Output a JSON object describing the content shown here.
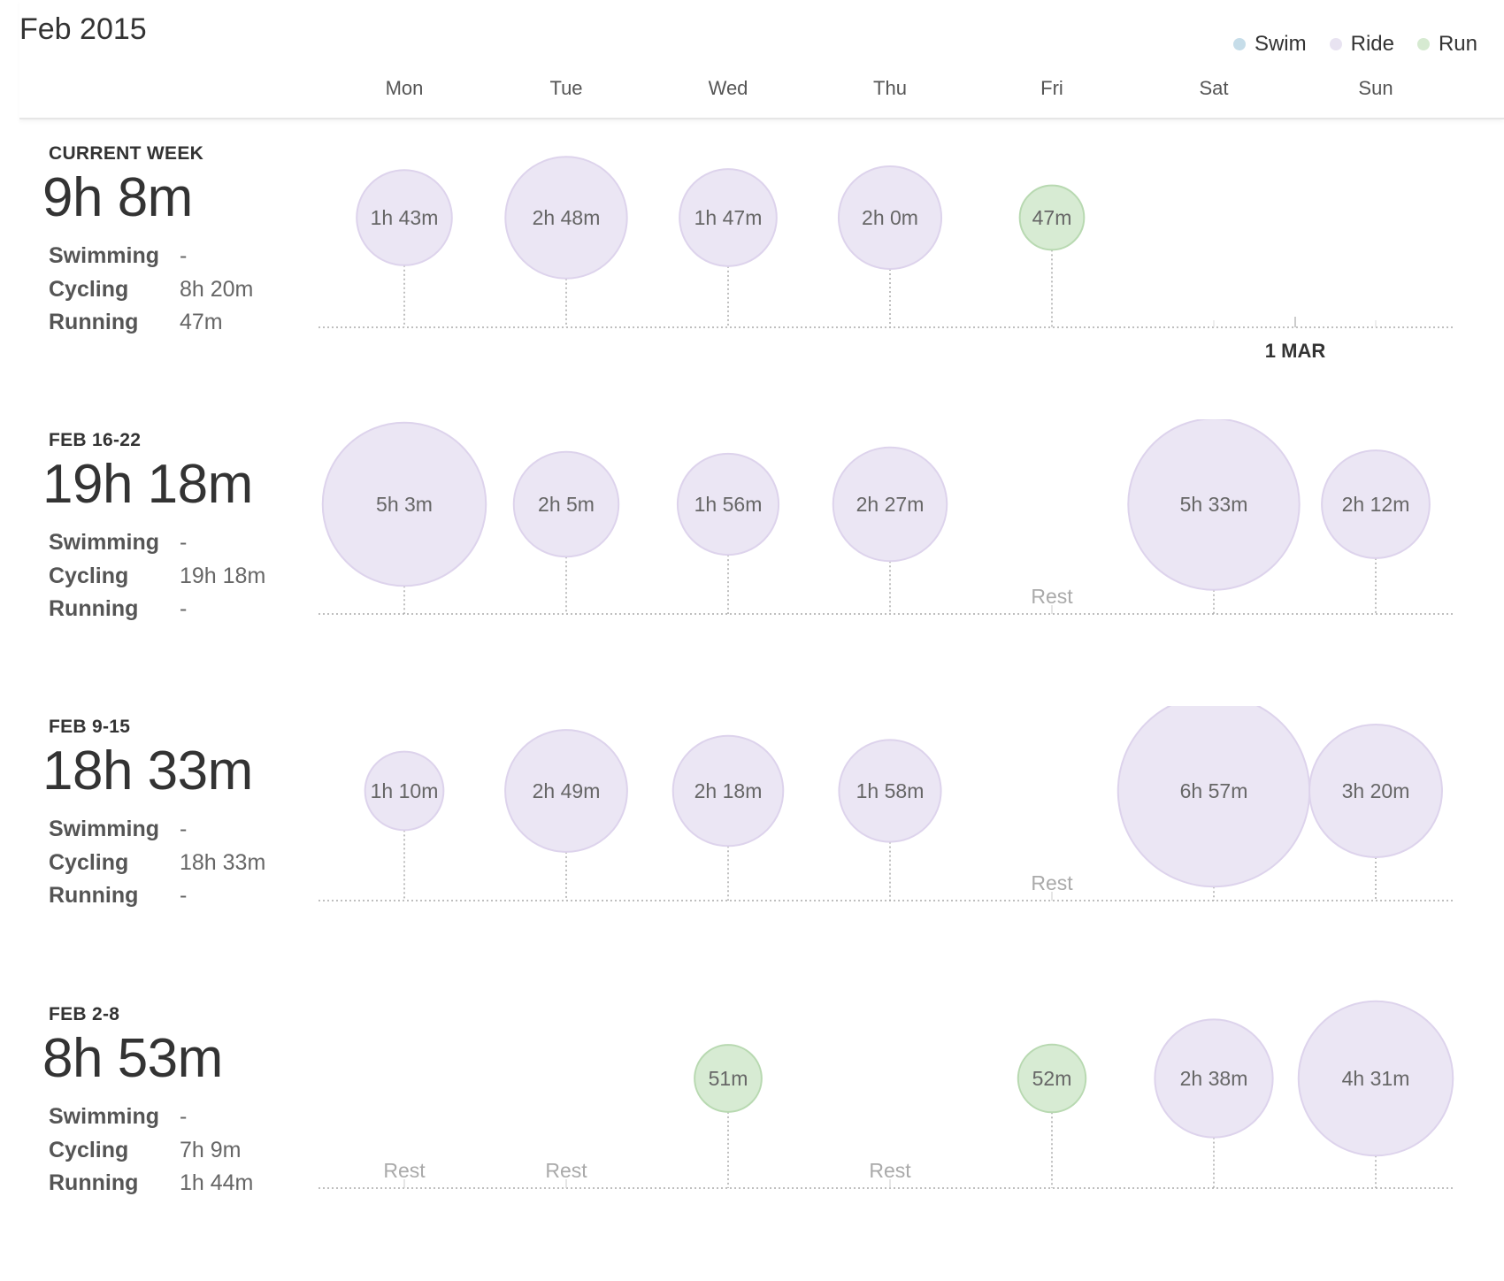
{
  "header": {
    "title": "Feb 2015",
    "legend": [
      {
        "label": "Swim",
        "color": "#c6dde9"
      },
      {
        "label": "Ride",
        "color": "#e8e3f1"
      },
      {
        "label": "Run",
        "color": "#d6ead1"
      }
    ],
    "days": [
      "Mon",
      "Tue",
      "Wed",
      "Thu",
      "Fri",
      "Sat",
      "Sun"
    ]
  },
  "colors": {
    "ride_fill": "#ebe6f4",
    "ride_stroke": "#ddd3ec",
    "run_fill": "#d7ebd3",
    "run_stroke": "#b8d9b1",
    "axis": "#aaaaaa"
  },
  "weeks": [
    {
      "label": "CURRENT WEEK",
      "total": "9h 8m",
      "stats": [
        {
          "name": "Swimming",
          "value": "-"
        },
        {
          "name": "Cycling",
          "value": "8h 20m"
        },
        {
          "name": "Running",
          "value": "47m"
        }
      ],
      "days": [
        {
          "type": "ride",
          "label": "1h 43m",
          "minutes": 103
        },
        {
          "type": "ride",
          "label": "2h 48m",
          "minutes": 168
        },
        {
          "type": "ride",
          "label": "1h 47m",
          "minutes": 107
        },
        {
          "type": "ride",
          "label": "2h 0m",
          "minutes": 120
        },
        {
          "type": "run",
          "label": "47m",
          "minutes": 47
        },
        {
          "type": "none"
        },
        {
          "type": "none"
        }
      ],
      "marker": "1 MAR"
    },
    {
      "label": "FEB 16-22",
      "total": "19h 18m",
      "stats": [
        {
          "name": "Swimming",
          "value": "-"
        },
        {
          "name": "Cycling",
          "value": "19h 18m"
        },
        {
          "name": "Running",
          "value": "-"
        }
      ],
      "days": [
        {
          "type": "ride",
          "label": "5h 3m",
          "minutes": 303
        },
        {
          "type": "ride",
          "label": "2h 5m",
          "minutes": 125
        },
        {
          "type": "ride",
          "label": "1h 56m",
          "minutes": 116
        },
        {
          "type": "ride",
          "label": "2h 27m",
          "minutes": 147
        },
        {
          "type": "rest",
          "label": "Rest"
        },
        {
          "type": "ride",
          "label": "5h 33m",
          "minutes": 333
        },
        {
          "type": "ride",
          "label": "2h 12m",
          "minutes": 132
        }
      ]
    },
    {
      "label": "FEB 9-15",
      "total": "18h 33m",
      "stats": [
        {
          "name": "Swimming",
          "value": "-"
        },
        {
          "name": "Cycling",
          "value": "18h 33m"
        },
        {
          "name": "Running",
          "value": "-"
        }
      ],
      "days": [
        {
          "type": "ride",
          "label": "1h 10m",
          "minutes": 70
        },
        {
          "type": "ride",
          "label": "2h 49m",
          "minutes": 169
        },
        {
          "type": "ride",
          "label": "2h 18m",
          "minutes": 138
        },
        {
          "type": "ride",
          "label": "1h 58m",
          "minutes": 118
        },
        {
          "type": "rest",
          "label": "Rest"
        },
        {
          "type": "ride",
          "label": "6h 57m",
          "minutes": 417
        },
        {
          "type": "ride",
          "label": "3h 20m",
          "minutes": 200
        }
      ]
    },
    {
      "label": "FEB 2-8",
      "total": "8h 53m",
      "stats": [
        {
          "name": "Swimming",
          "value": "-"
        },
        {
          "name": "Cycling",
          "value": "7h 9m"
        },
        {
          "name": "Running",
          "value": "1h 44m"
        }
      ],
      "days": [
        {
          "type": "rest",
          "label": "Rest"
        },
        {
          "type": "rest",
          "label": "Rest"
        },
        {
          "type": "run",
          "label": "51m",
          "minutes": 51
        },
        {
          "type": "rest",
          "label": "Rest"
        },
        {
          "type": "run",
          "label": "52m",
          "minutes": 52
        },
        {
          "type": "ride",
          "label": "2h 38m",
          "minutes": 158
        },
        {
          "type": "ride",
          "label": "4h 31m",
          "minutes": 271
        }
      ]
    }
  ]
}
